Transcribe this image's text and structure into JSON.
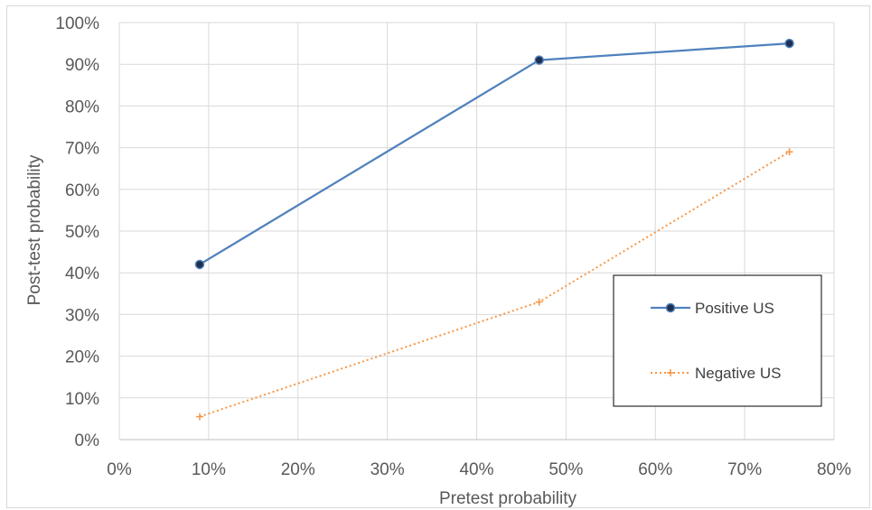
{
  "chart_data": {
    "type": "line",
    "title": "",
    "xlabel": "Pretest probability",
    "ylabel": "Post-test probability",
    "xlim": [
      0,
      80
    ],
    "ylim": [
      0,
      100
    ],
    "x_ticks": [
      "0%",
      "10%",
      "20%",
      "30%",
      "40%",
      "50%",
      "60%",
      "70%",
      "80%"
    ],
    "y_ticks": [
      "0%",
      "10%",
      "20%",
      "30%",
      "40%",
      "50%",
      "60%",
      "70%",
      "80%",
      "90%",
      "100%"
    ],
    "grid": true,
    "legend_position": "bottom-right",
    "series": [
      {
        "name": "Positive US",
        "color": "#4f81bd",
        "marker": "circle",
        "line_style": "solid",
        "x": [
          9,
          47,
          75
        ],
        "y": [
          42,
          91,
          95
        ]
      },
      {
        "name": "Negative US",
        "color": "#f79646",
        "marker": "plus",
        "line_style": "dotted",
        "x": [
          9,
          47,
          75
        ],
        "y": [
          5.5,
          33,
          69
        ]
      }
    ]
  }
}
